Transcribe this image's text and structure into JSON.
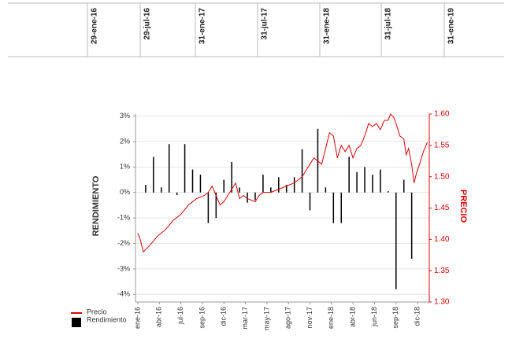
{
  "header_dates": [
    "29-ene-16",
    "29-jul-16",
    "31-ene-17",
    "31-jul-17",
    "31-ene-18",
    "31-jul-18",
    "31-ene-19"
  ],
  "chart_data": {
    "type": "bar-line",
    "y_label": "RENDIMIENTO",
    "y2_label": "PRECIO",
    "xlim": [
      -0.3,
      37.25
    ],
    "xticks": [
      {
        "value": 0,
        "label": "ene-16"
      },
      {
        "value": 2.75,
        "label": "abr-16"
      },
      {
        "value": 5.5,
        "label": "jul-16"
      },
      {
        "value": 8.25,
        "label": "sep-16"
      },
      {
        "value": 11,
        "label": "dic-16"
      },
      {
        "value": 13.75,
        "label": "mar-17"
      },
      {
        "value": 16.5,
        "label": "may-17"
      },
      {
        "value": 19.25,
        "label": "ago-17"
      },
      {
        "value": 22,
        "label": "nov-17"
      },
      {
        "value": 24.75,
        "label": "ene-18"
      },
      {
        "value": 27.5,
        "label": "abr-18"
      },
      {
        "value": 30.25,
        "label": "jun-18"
      },
      {
        "value": 33,
        "label": "sep-18"
      },
      {
        "value": 35.75,
        "label": "dic-18"
      }
    ],
    "ylim": [
      -4.3,
      3.08
    ],
    "yticks": [
      {
        "value": 3,
        "label": "3%"
      },
      {
        "value": 2,
        "label": "2%"
      },
      {
        "value": 1,
        "label": "1%"
      },
      {
        "value": 0,
        "label": "0%"
      },
      {
        "value": -1,
        "label": "-1%"
      },
      {
        "value": -2,
        "label": "-2%"
      },
      {
        "value": -3,
        "label": "-3%"
      },
      {
        "value": -4,
        "label": "-4%"
      }
    ],
    "y2lim": [
      1.3,
      1.6
    ],
    "y2ticks": [
      {
        "value": 1.6,
        "label": "1.60"
      },
      1.55,
      {
        "value": 1.5,
        "label": "1.50"
      },
      1.45,
      {
        "value": 1.4,
        "label": "1.40"
      },
      1.35,
      {
        "value": 1.3,
        "label": "1.30"
      }
    ],
    "grid": true,
    "legend": "bottom-left",
    "series": [
      {
        "name": "Precio",
        "type": "line",
        "axis": "y2",
        "color": "#e00000",
        "x": [
          0,
          0.3,
          0.7,
          1.5,
          2.5,
          3.5,
          4.5,
          5.5,
          6.5,
          7.5,
          8.5,
          9,
          9.5,
          10,
          10.5,
          11,
          11.5,
          12,
          12.5,
          13,
          13.5,
          14,
          15,
          15.5,
          16,
          17,
          18,
          19,
          20,
          21,
          21.5,
          22,
          22.5,
          23,
          23.5,
          24,
          24.5,
          25,
          25.5,
          26,
          26.5,
          27,
          27.5,
          28,
          28.5,
          29,
          29.5,
          30,
          30.5,
          31,
          31.5,
          32,
          32.3,
          32.7,
          33,
          33.5,
          34,
          34.3,
          34.6,
          35,
          35.3,
          35.6,
          36,
          36.5,
          37
        ],
        "values": [
          1.41,
          1.4,
          1.38,
          1.39,
          1.405,
          1.415,
          1.43,
          1.44,
          1.455,
          1.465,
          1.47,
          1.475,
          1.485,
          1.47,
          1.455,
          1.46,
          1.47,
          1.48,
          1.49,
          1.465,
          1.47,
          1.465,
          1.46,
          1.47,
          1.475,
          1.475,
          1.48,
          1.485,
          1.49,
          1.5,
          1.51,
          1.52,
          1.53,
          1.525,
          1.52,
          1.545,
          1.57,
          1.565,
          1.53,
          1.55,
          1.54,
          1.55,
          1.53,
          1.545,
          1.55,
          1.565,
          1.585,
          1.58,
          1.585,
          1.575,
          1.59,
          1.59,
          1.6,
          1.595,
          1.585,
          1.565,
          1.56,
          1.535,
          1.545,
          1.52,
          1.49,
          1.505,
          1.52,
          1.54,
          1.555
        ]
      },
      {
        "name": "Rendimiento",
        "type": "bar",
        "color": "#000000",
        "x": [
          1,
          2,
          3,
          4,
          5,
          6,
          7,
          8,
          9,
          10,
          11,
          12,
          13,
          14,
          15,
          16,
          17,
          18,
          19,
          20,
          21,
          22,
          23,
          24,
          25,
          26,
          27,
          28,
          29,
          30,
          31,
          32,
          33,
          34,
          35
        ],
        "values": [
          0.3,
          1.4,
          0.2,
          1.9,
          -0.1,
          1.9,
          0.9,
          0.7,
          -1.2,
          -1.0,
          0.5,
          1.2,
          0.2,
          -0.4,
          -0.3,
          0.7,
          0.2,
          0.6,
          0.3,
          0.6,
          1.7,
          -0.7,
          2.5,
          0.2,
          -1.2,
          -1.2,
          1.4,
          0.8,
          1.0,
          0.7,
          0.9,
          0.05,
          -3.8,
          0.5,
          -2.6
        ]
      }
    ]
  }
}
